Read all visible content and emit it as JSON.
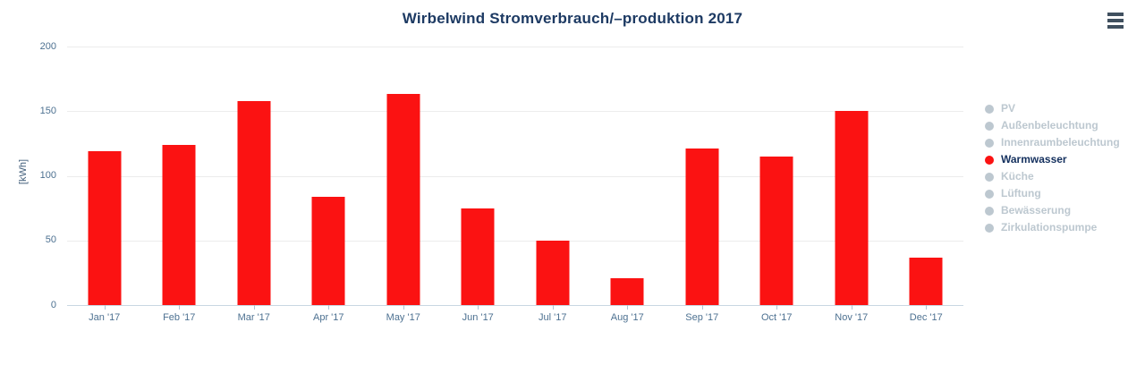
{
  "chart_data": {
    "type": "bar",
    "title": "Wirbelwind Stromverbrauch/–produktion 2017",
    "ylabel": "[kWh]",
    "xlabel": "",
    "categories": [
      "Jan '17",
      "Feb '17",
      "Mar '17",
      "Apr '17",
      "May '17",
      "Jun '17",
      "Jul '17",
      "Aug '17",
      "Sep '17",
      "Oct '17",
      "Nov '17",
      "Dec '17"
    ],
    "series": [
      {
        "name": "Warmwasser",
        "color": "#fb1212",
        "values": [
          119,
          124,
          158,
          84,
          163,
          75,
          50,
          21,
          121,
          115,
          150,
          37
        ]
      }
    ],
    "ylim": [
      0,
      200
    ],
    "yticks": [
      0,
      50,
      100,
      150,
      200
    ],
    "grid": true,
    "legend_position": "right"
  },
  "legend": {
    "items": [
      {
        "label": "PV",
        "active": false
      },
      {
        "label": "Außenbeleuchtung",
        "active": false
      },
      {
        "label": "Innenraumbeleuchtung",
        "active": false
      },
      {
        "label": "Warmwasser",
        "active": true
      },
      {
        "label": "Küche",
        "active": false
      },
      {
        "label": "Lüftung",
        "active": false
      },
      {
        "label": "Bewässerung",
        "active": false
      },
      {
        "label": "Zirkulationspumpe",
        "active": false
      }
    ]
  },
  "toolbar": {
    "menu_icon": "hamburger-menu-icon"
  },
  "colors": {
    "bar": "#fb1212",
    "title_text": "#1d3a63",
    "axis_label": "#4d7191",
    "y_axis_title": "#44607c",
    "grid_line": "#ececec",
    "axis_line": "#c9d7e2",
    "tick_mark": "#b0c4d4",
    "legend_inactive": "#bdc8d0",
    "legend_active_text": "#14305e",
    "menu_icon": "#40505f",
    "background": "#ffffff"
  }
}
